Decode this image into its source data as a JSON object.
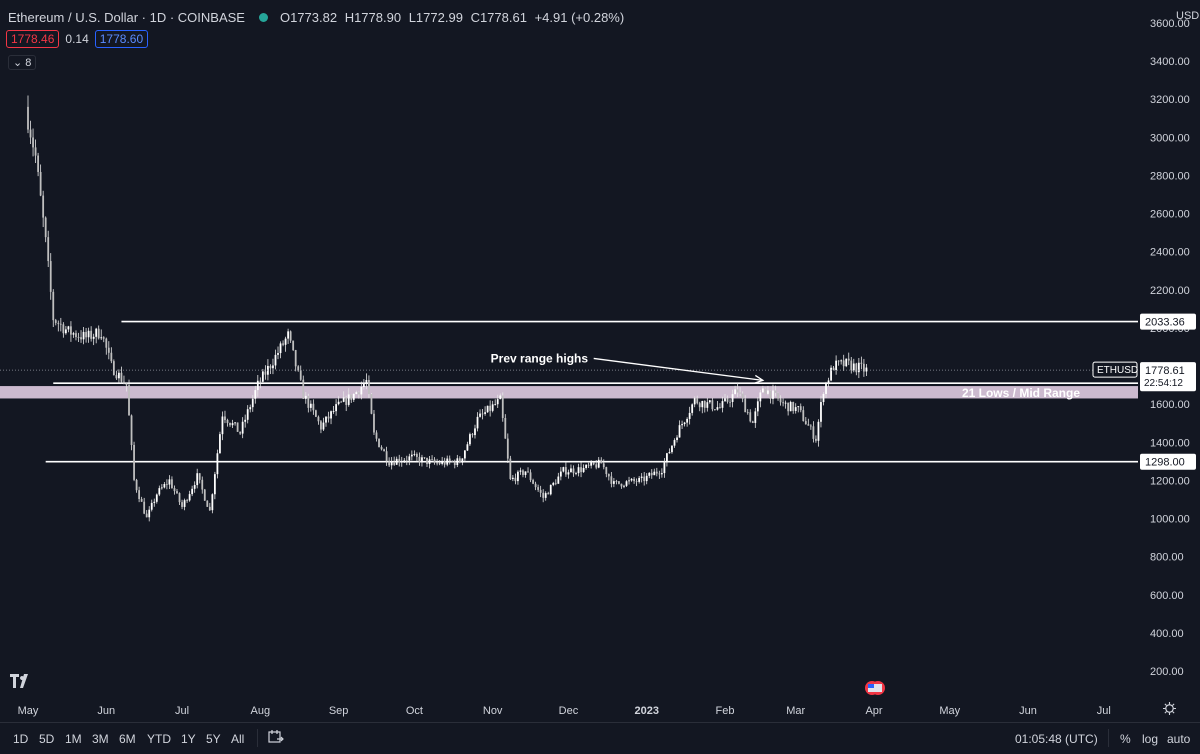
{
  "header": {
    "symbol": "Ethereum / U.S. Dollar · 1D · COINBASE",
    "open": "O1773.82",
    "high": "H1778.90",
    "low": "L1772.99",
    "close": "C1778.61",
    "change": "+4.91 (+0.28%)",
    "bid": "1778.46",
    "spread": "0.14",
    "ask": "1778.60",
    "indicator_count": "8",
    "currency": "USD"
  },
  "bottombar": {
    "ranges": [
      "1D",
      "5D",
      "1M",
      "3M",
      "6M",
      "YTD",
      "1Y",
      "5Y",
      "All"
    ],
    "time": "01:05:48 (UTC)",
    "percent": "%",
    "log": "log",
    "auto": "auto"
  },
  "colors": {
    "background": "#131722",
    "up": "#ffffff",
    "down": "#ffffff",
    "grid": "#1e222d",
    "zone": "#d6c3d9",
    "label_bg": "#ffffff"
  },
  "chart_data": {
    "type": "candlestick",
    "symbol": "ETHUSD",
    "y_axis_ticks": [
      200,
      400,
      600,
      800,
      1000,
      1200,
      1400,
      1600,
      1800,
      2000,
      2200,
      2400,
      2600,
      2800,
      3000,
      3200,
      3400,
      3600
    ],
    "y_tick_labels": [
      "200.00",
      "400.00",
      "600.00",
      "800.00",
      "1000.00",
      "1200.00",
      "1400.00",
      "1600.00",
      "1800.00",
      "2000.00",
      "2200.00",
      "2400.00",
      "2600.00",
      "2800.00",
      "3000.00",
      "3200.00",
      "3400.00",
      "3600.00"
    ],
    "ylim": [
      120,
      3680
    ],
    "x_axis_labels": [
      "May",
      "Jun",
      "Jul",
      "Aug",
      "Sep",
      "Oct",
      "Nov",
      "Dec",
      "2023",
      "Feb",
      "Mar",
      "Apr",
      "May",
      "Jun",
      "Jul"
    ],
    "x_range": [
      "2022-05-01",
      "2023-07-31"
    ],
    "last_price": "1778.61",
    "last_price_label": "ETHUSD",
    "countdown": "22:54:12",
    "price_path": [
      [
        "2022-05-01",
        3160
      ],
      [
        "2022-05-05",
        2900
      ],
      [
        "2022-05-09",
        2450
      ],
      [
        "2022-05-12",
        2050
      ],
      [
        "2022-05-18",
        1980
      ],
      [
        "2022-05-25",
        1950
      ],
      [
        "2022-05-31",
        1980
      ],
      [
        "2022-06-04",
        1800
      ],
      [
        "2022-06-10",
        1700
      ],
      [
        "2022-06-13",
        1200
      ],
      [
        "2022-06-18",
        1000
      ],
      [
        "2022-06-22",
        1130
      ],
      [
        "2022-06-27",
        1200
      ],
      [
        "2022-07-02",
        1060
      ],
      [
        "2022-07-08",
        1220
      ],
      [
        "2022-07-13",
        1040
      ],
      [
        "2022-07-18",
        1550
      ],
      [
        "2022-07-25",
        1450
      ],
      [
        "2022-08-01",
        1700
      ],
      [
        "2022-08-08",
        1850
      ],
      [
        "2022-08-13",
        1960
      ],
      [
        "2022-08-19",
        1650
      ],
      [
        "2022-08-26",
        1480
      ],
      [
        "2022-09-01",
        1580
      ],
      [
        "2022-09-08",
        1650
      ],
      [
        "2022-09-13",
        1720
      ],
      [
        "2022-09-16",
        1440
      ],
      [
        "2022-09-22",
        1300
      ],
      [
        "2022-10-01",
        1320
      ],
      [
        "2022-10-10",
        1290
      ],
      [
        "2022-10-20",
        1300
      ],
      [
        "2022-10-27",
        1520
      ],
      [
        "2022-11-05",
        1620
      ],
      [
        "2022-11-09",
        1200
      ],
      [
        "2022-11-15",
        1250
      ],
      [
        "2022-11-22",
        1110
      ],
      [
        "2022-11-30",
        1250
      ],
      [
        "2022-12-08",
        1260
      ],
      [
        "2022-12-15",
        1290
      ],
      [
        "2022-12-20",
        1180
      ],
      [
        "2022-12-31",
        1200
      ],
      [
        "2023-01-08",
        1260
      ],
      [
        "2023-01-14",
        1450
      ],
      [
        "2023-01-21",
        1620
      ],
      [
        "2023-01-31",
        1580
      ],
      [
        "2023-02-07",
        1670
      ],
      [
        "2023-02-13",
        1500
      ],
      [
        "2023-02-17",
        1690
      ],
      [
        "2023-02-25",
        1600
      ],
      [
        "2023-03-03",
        1570
      ],
      [
        "2023-03-10",
        1420
      ],
      [
        "2023-03-13",
        1680
      ],
      [
        "2023-03-17",
        1800
      ],
      [
        "2023-03-22",
        1810
      ],
      [
        "2023-03-30",
        1778
      ]
    ],
    "annotations": [
      {
        "type": "horizontal_line",
        "value": 2033.36,
        "label": "2033.36",
        "from": "2022-06-07"
      },
      {
        "type": "horizontal_line",
        "value": 1709.97,
        "label": "1709.97",
        "from": "2022-05-11"
      },
      {
        "type": "horizontal_line",
        "value": 1298.0,
        "label": "1298.00",
        "from": "2022-05-08"
      },
      {
        "type": "zone",
        "value_low": 1630,
        "value_high": 1695,
        "label": "21 Lows / Mid Range"
      },
      {
        "type": "arrow",
        "text": "Prev range highs",
        "from": [
          "2022-12-11",
          1840
        ],
        "to": [
          "2023-02-16",
          1725
        ]
      }
    ]
  }
}
